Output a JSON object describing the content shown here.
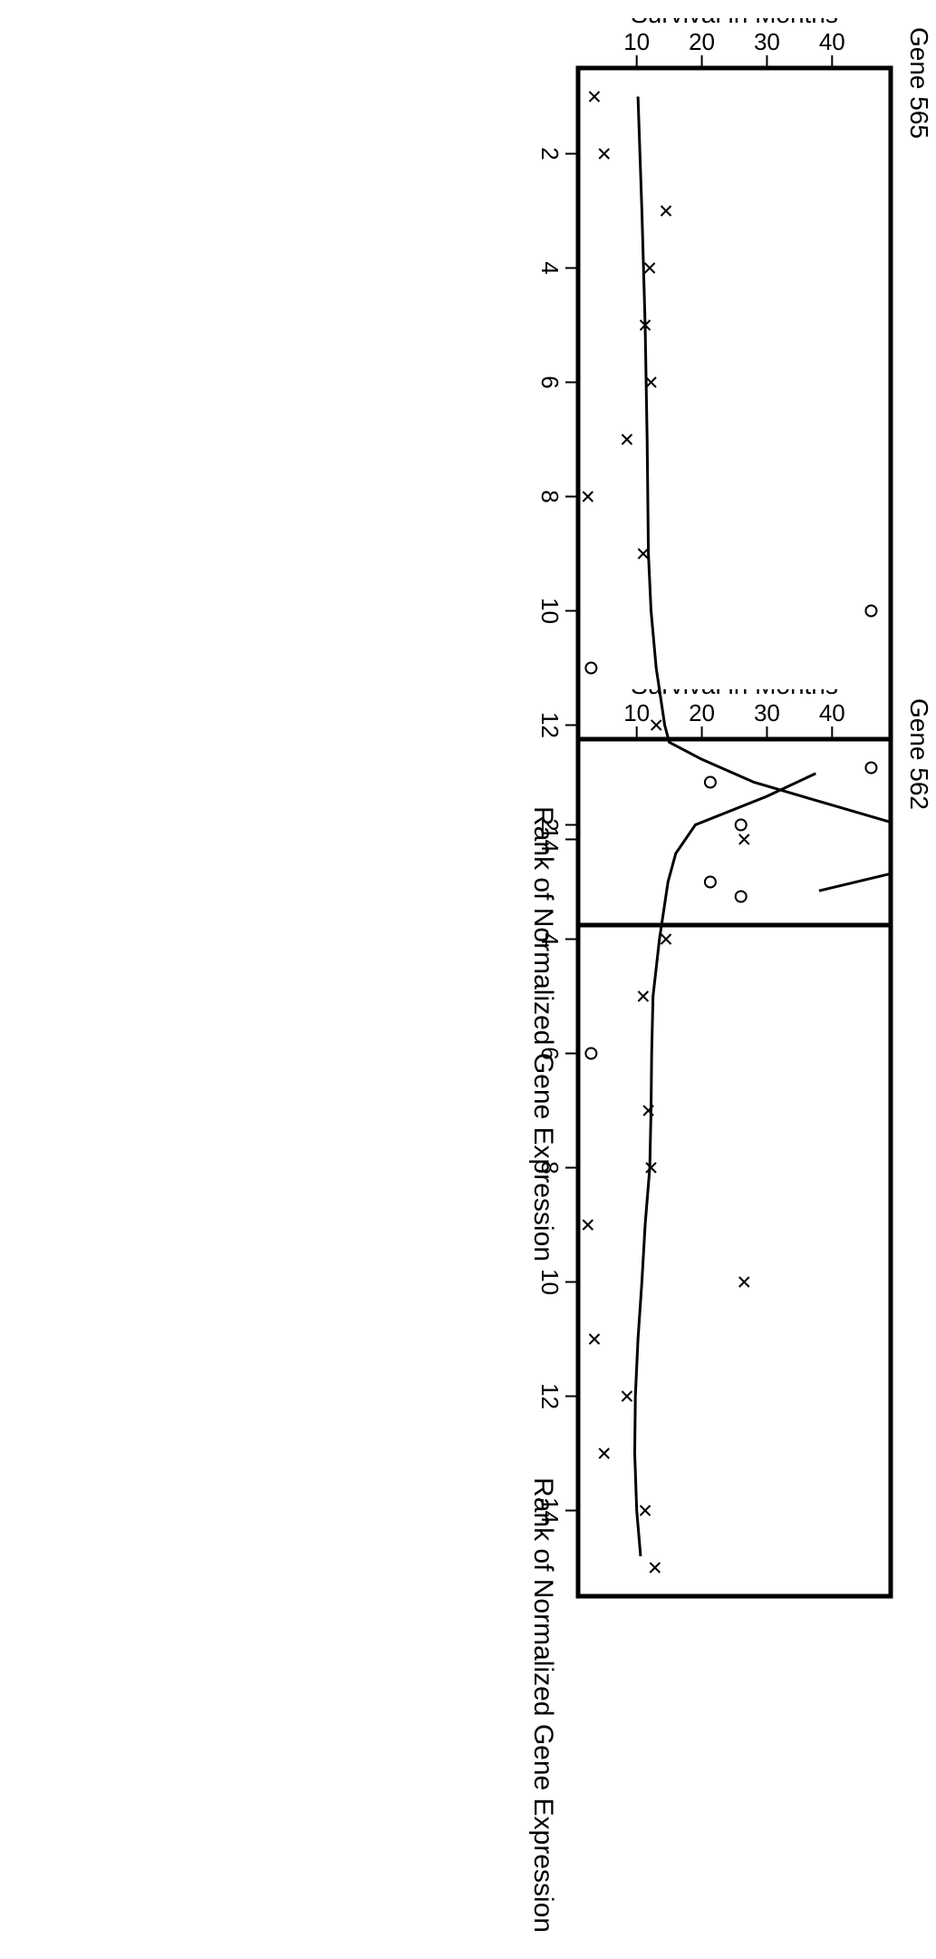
{
  "chart_data": [
    {
      "type": "scatter",
      "title": "Gene 565",
      "xlabel": "Rank of Normalized Gene Expression",
      "ylabel": "Survival in Months",
      "xlim": [
        0.5,
        15.5
      ],
      "ylim": [
        1,
        49
      ],
      "x_ticks": [
        2,
        4,
        6,
        8,
        10,
        12,
        14
      ],
      "y_ticks": [
        10,
        20,
        30,
        40
      ],
      "grid": false,
      "series": [
        {
          "marker": "x",
          "points": [
            {
              "x": 1,
              "y": 3.5
            },
            {
              "x": 2,
              "y": 5
            },
            {
              "x": 3,
              "y": 14.5
            },
            {
              "x": 4,
              "y": 12
            },
            {
              "x": 5,
              "y": 11.3
            },
            {
              "x": 6,
              "y": 12.2
            },
            {
              "x": 7,
              "y": 8.5
            },
            {
              "x": 8,
              "y": 2.5
            },
            {
              "x": 9,
              "y": 11
            },
            {
              "x": 12,
              "y": 13
            },
            {
              "x": 14,
              "y": 26.5
            }
          ]
        },
        {
          "marker": "o",
          "points": [
            {
              "x": 10,
              "y": 46
            },
            {
              "x": 11,
              "y": 3
            },
            {
              "x": 13,
              "y": 21.3
            },
            {
              "x": 15,
              "y": 26
            }
          ]
        },
        {
          "marker": "line",
          "points": [
            {
              "x": 1,
              "y": 10.2
            },
            {
              "x": 3,
              "y": 10.8
            },
            {
              "x": 5,
              "y": 11.3
            },
            {
              "x": 7,
              "y": 11.6
            },
            {
              "x": 9,
              "y": 11.8
            },
            {
              "x": 10,
              "y": 12.2
            },
            {
              "x": 11,
              "y": 13
            },
            {
              "x": 12,
              "y": 14.3
            },
            {
              "x": 12.3,
              "y": 15
            },
            {
              "x": 12.6,
              "y": 20
            },
            {
              "x": 13,
              "y": 28
            },
            {
              "x": 13.4,
              "y": 40
            },
            {
              "x": 13.7,
              "y": 49
            }
          ]
        },
        {
          "marker": "line",
          "points": [
            {
              "x": 14.6,
              "y": 49
            },
            {
              "x": 14.9,
              "y": 38
            }
          ]
        }
      ]
    },
    {
      "type": "scatter",
      "title": "Gene 562",
      "xlabel": "Rank of Normalized Gene Expression",
      "ylabel": "Survival in Months",
      "xlim": [
        0.5,
        15.5
      ],
      "ylim": [
        1,
        49
      ],
      "x_ticks": [
        2,
        4,
        6,
        8,
        10,
        12,
        14
      ],
      "y_ticks": [
        10,
        20,
        30,
        40
      ],
      "grid": false,
      "series": [
        {
          "marker": "x",
          "points": [
            {
              "x": 4,
              "y": 14.5
            },
            {
              "x": 5,
              "y": 11
            },
            {
              "x": 7,
              "y": 11.8
            },
            {
              "x": 8,
              "y": 12.2
            },
            {
              "x": 9,
              "y": 2.5
            },
            {
              "x": 10,
              "y": 26.5
            },
            {
              "x": 11,
              "y": 3.5
            },
            {
              "x": 12,
              "y": 8.5
            },
            {
              "x": 13,
              "y": 5
            },
            {
              "x": 14,
              "y": 11.3
            },
            {
              "x": 15,
              "y": 12.8
            }
          ]
        },
        {
          "marker": "o",
          "points": [
            {
              "x": 1,
              "y": 46
            },
            {
              "x": 2,
              "y": 26
            },
            {
              "x": 3,
              "y": 21.3
            },
            {
              "x": 6,
              "y": 3
            }
          ]
        },
        {
          "marker": "line",
          "points": [
            {
              "x": 1.1,
              "y": 37.5
            },
            {
              "x": 1.5,
              "y": 30
            },
            {
              "x": 2,
              "y": 19
            },
            {
              "x": 2.5,
              "y": 16
            },
            {
              "x": 3,
              "y": 14.8
            },
            {
              "x": 4,
              "y": 13.5
            },
            {
              "x": 5,
              "y": 12.5
            },
            {
              "x": 6,
              "y": 12.3
            },
            {
              "x": 7,
              "y": 12.2
            },
            {
              "x": 8,
              "y": 12
            },
            {
              "x": 9,
              "y": 11.3
            },
            {
              "x": 10,
              "y": 10.8
            },
            {
              "x": 11,
              "y": 10.2
            },
            {
              "x": 12,
              "y": 9.8
            },
            {
              "x": 13,
              "y": 9.7
            },
            {
              "x": 14,
              "y": 10
            },
            {
              "x": 14.8,
              "y": 10.6
            }
          ]
        }
      ]
    }
  ]
}
